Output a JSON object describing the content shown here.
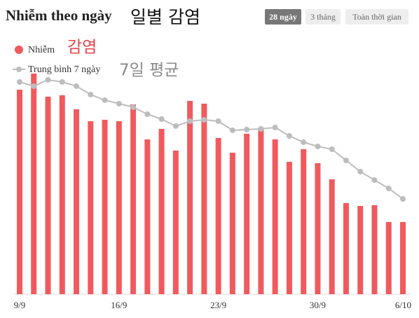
{
  "chart_data": {
    "type": "bar",
    "title": "Nhiễm theo ngày",
    "title_annotation": "일별 감염",
    "buttons": [
      "28 ngày",
      "3 tháng",
      "Toàn thời gian"
    ],
    "active_button": 0,
    "legend_annotations": [
      {
        "text": "감염",
        "color": "#e8434a"
      },
      {
        "text": "7일 평균",
        "color": "#8a8a8a"
      }
    ],
    "categories": [
      "9/9",
      null,
      null,
      null,
      null,
      null,
      null,
      "16/9",
      null,
      null,
      null,
      null,
      null,
      null,
      "23/9",
      null,
      null,
      null,
      null,
      null,
      null,
      "30/9",
      null,
      null,
      null,
      null,
      null,
      "6/10"
    ],
    "ylim": [
      0,
      320
    ],
    "series": [
      {
        "name": "Nhiễm",
        "type": "bar",
        "color": "#f05a5e",
        "values": [
          292,
          315,
          282,
          284,
          264,
          247,
          249,
          247,
          271,
          221,
          236,
          205,
          276,
          272,
          223,
          202,
          229,
          236,
          221,
          189,
          207,
          187,
          164,
          130,
          126,
          127,
          103,
          103
        ]
      },
      {
        "name": "Trung bình 7 ngày",
        "type": "line",
        "color": "#bdbdbd",
        "values": [
          303,
          297,
          306,
          303,
          297,
          285,
          277,
          272,
          267,
          257,
          250,
          240,
          247,
          249,
          247,
          234,
          235,
          236,
          238,
          226,
          217,
          211,
          207,
          191,
          175,
          163,
          151,
          136
        ]
      }
    ]
  }
}
